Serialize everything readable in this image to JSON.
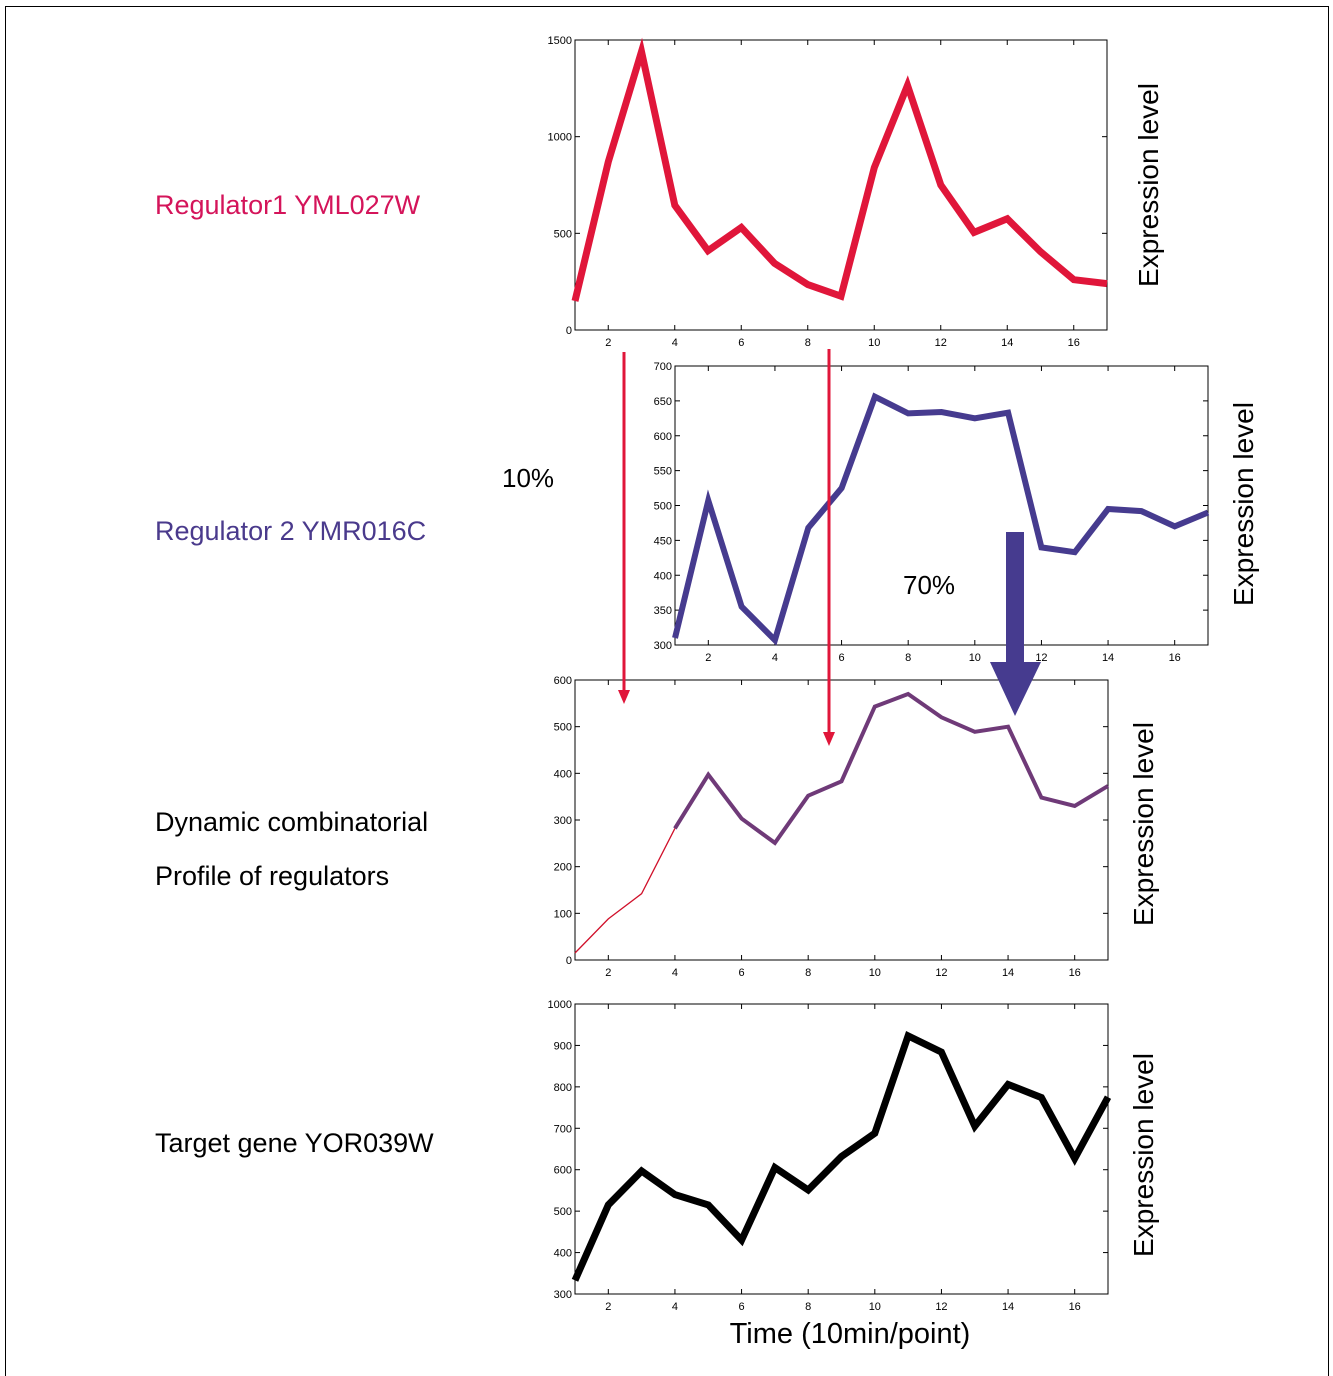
{
  "figure": {
    "time_axis_label": "Time (10min/point)",
    "labels": {
      "regulator1": "Regulator1 YML027W",
      "regulator2": "Regulator 2 YMR016C",
      "dynamic_line1": "Dynamic combinatorial",
      "dynamic_line2": "Profile of regulators",
      "target": "Target gene YOR039W"
    },
    "percentages": {
      "regulator1": "10%",
      "regulator2": "70%"
    },
    "colors": {
      "regulator1": "#e0163a",
      "regulator2": "#463b8f",
      "combined": "#6f3a78",
      "target": "#000000",
      "regulator1_label": "#d4145a",
      "regulator2_label": "#4a3a8c"
    }
  },
  "chart_data": [
    {
      "type": "line",
      "series": [
        {
          "name": "Regulator1 YML027W",
          "color": "#e0163a",
          "x": [
            1,
            2,
            3,
            4,
            5,
            6,
            7,
            8,
            9,
            10,
            11,
            12,
            13,
            14,
            15,
            16,
            17
          ],
          "values": [
            150,
            870,
            1440,
            645,
            410,
            530,
            345,
            235,
            175,
            840,
            1265,
            750,
            505,
            575,
            405,
            260,
            240
          ]
        }
      ],
      "ylabel": "Expression level",
      "xlim": [
        1,
        17
      ],
      "ylim": [
        0,
        1500
      ],
      "xticks": [
        2,
        4,
        6,
        8,
        10,
        12,
        14,
        16
      ],
      "yticks": [
        0,
        500,
        1000,
        1500
      ]
    },
    {
      "type": "line",
      "series": [
        {
          "name": "Regulator 2 YMR016C",
          "color": "#463b8f",
          "x": [
            1,
            2,
            3,
            4,
            5,
            6,
            7,
            8,
            9,
            10,
            11,
            12,
            13,
            14,
            15,
            16,
            17
          ],
          "values": [
            310,
            507,
            355,
            307,
            468,
            525,
            656,
            632,
            634,
            625,
            633,
            440,
            433,
            495,
            492,
            470,
            490
          ]
        }
      ],
      "ylabel": "Expression level",
      "xlim": [
        1,
        17
      ],
      "ylim": [
        300,
        700
      ],
      "xticks": [
        2,
        4,
        6,
        8,
        10,
        12,
        14,
        16
      ],
      "yticks": [
        300,
        350,
        400,
        450,
        500,
        550,
        600,
        650,
        700
      ]
    },
    {
      "type": "line",
      "series": [
        {
          "name": "Regulator1 YML027W",
          "color": "#d0102a",
          "x": [
            1,
            2,
            3,
            4
          ],
          "values": [
            15,
            88,
            142,
            282
          ]
        },
        {
          "name": "Dynamic combinatorial Profile of regulators",
          "color": "#6f3a78",
          "x": [
            4,
            5,
            6,
            7,
            8,
            9,
            10,
            11,
            12,
            13,
            14,
            15,
            16,
            17
          ],
          "values": [
            282,
            397,
            303,
            251,
            352,
            383,
            543,
            570,
            520,
            489,
            500,
            348,
            330,
            373
          ]
        }
      ],
      "ylabel": "Expression level",
      "xlim": [
        1,
        17
      ],
      "ylim": [
        0,
        600
      ],
      "xticks": [
        2,
        4,
        6,
        8,
        10,
        12,
        14,
        16
      ],
      "yticks": [
        0,
        100,
        200,
        300,
        400,
        500,
        600
      ]
    },
    {
      "type": "line",
      "series": [
        {
          "name": "Target gene YOR039W",
          "color": "#000000",
          "x": [
            1,
            2,
            3,
            4,
            5,
            6,
            7,
            8,
            9,
            10,
            11,
            12,
            13,
            14,
            15,
            16,
            17
          ],
          "values": [
            333,
            515,
            597,
            540,
            515,
            430,
            605,
            551,
            632,
            688,
            923,
            884,
            705,
            806,
            774,
            627,
            775
          ]
        }
      ],
      "ylabel": "Expression level",
      "xlabel": "Time (10min/point)",
      "xlim": [
        1,
        17
      ],
      "ylim": [
        300,
        1000
      ],
      "xticks": [
        2,
        4,
        6,
        8,
        10,
        12,
        14,
        16
      ],
      "yticks": [
        300,
        400,
        500,
        600,
        700,
        800,
        900,
        1000
      ]
    }
  ]
}
